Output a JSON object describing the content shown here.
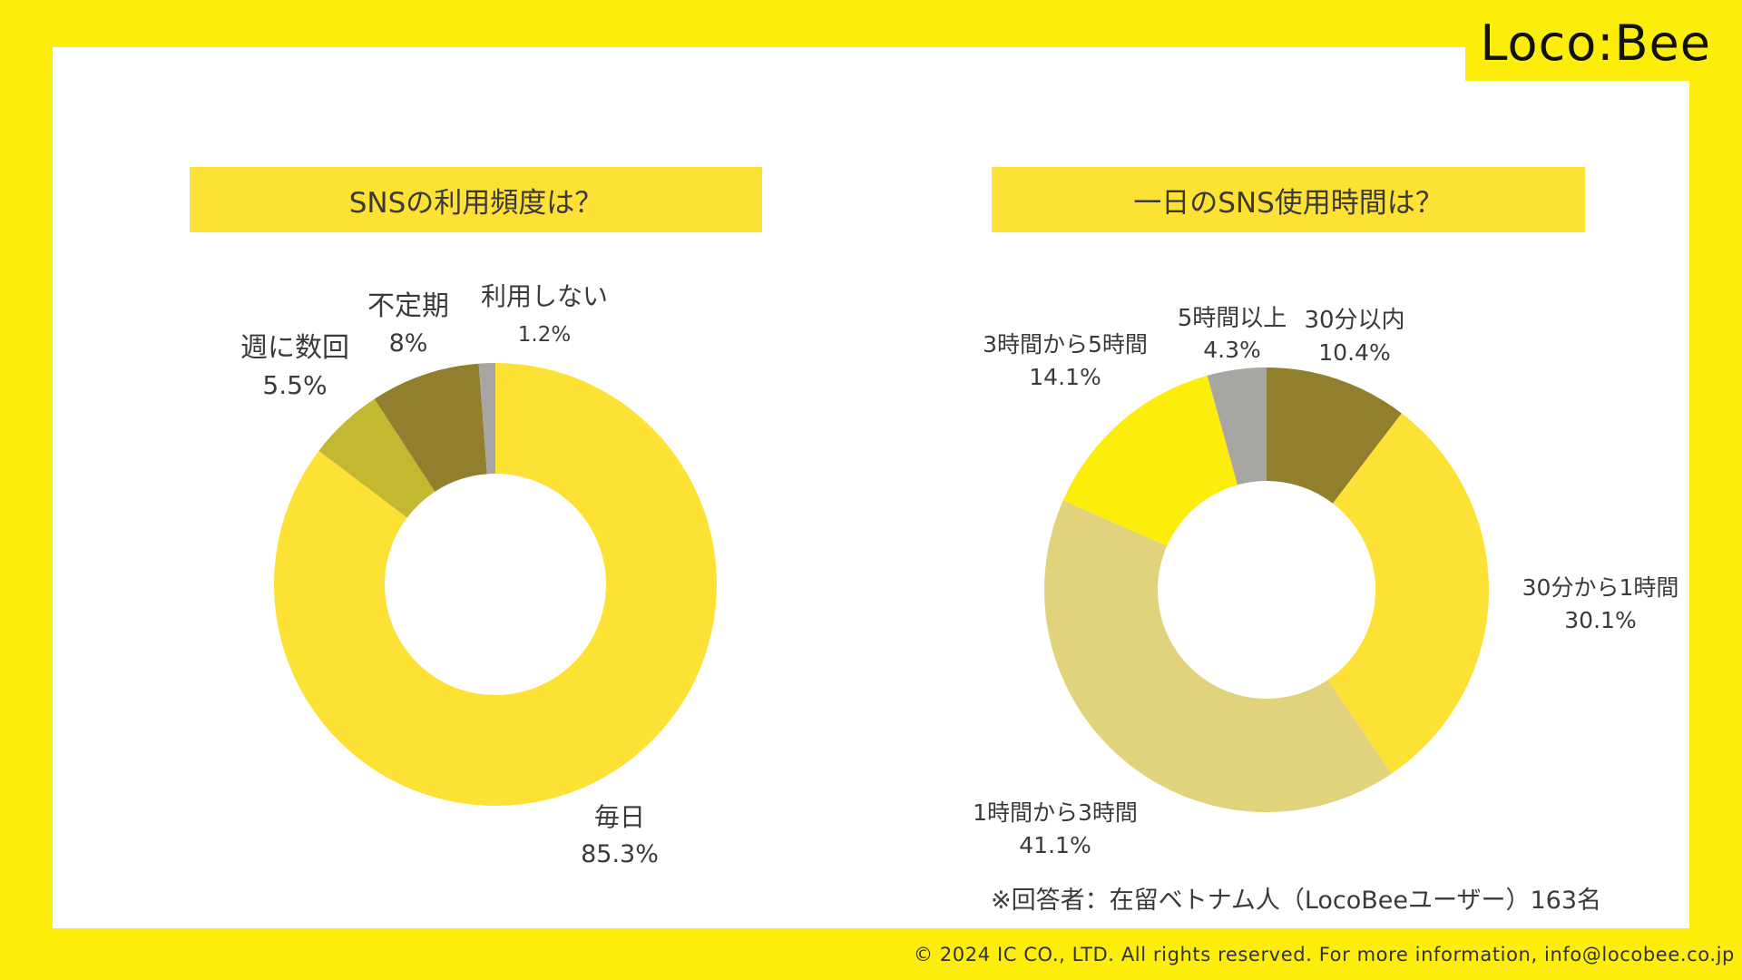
{
  "brand": {
    "logo_text": "Loco:Bee"
  },
  "footer": {
    "copyright": "© 2024 IC CO., LTD. All rights reserved. For more information, info@locobee.co.jp"
  },
  "note": "※回答者：在留ベトナム人（LocoBeeユーザー）163名",
  "chart_data": [
    {
      "type": "pie",
      "title": "SNSの利用頻度は？",
      "donut": true,
      "slices": [
        {
          "label": "毎日",
          "value": 85.3,
          "display": "85.3%",
          "color": "#FDE235"
        },
        {
          "label": "週に数回",
          "value": 5.5,
          "display": "5.5%",
          "color": "#C3B930"
        },
        {
          "label": "不定期",
          "value": 8,
          "display": "8%",
          "color": "#917F2E"
        },
        {
          "label": "利用しない",
          "value": 1.2,
          "display": "1.2%",
          "color": "#A7A6A2"
        }
      ]
    },
    {
      "type": "pie",
      "title": "一日のSNS使用時間は？",
      "donut": true,
      "slices": [
        {
          "label": "30分以内",
          "value": 10.4,
          "display": "10.4%",
          "color": "#917F2E"
        },
        {
          "label": "30分から1時間",
          "value": 30.1,
          "display": "30.1%",
          "color": "#FDE235"
        },
        {
          "label": "1時間から3時間",
          "value": 41.1,
          "display": "41.1%",
          "color": "#E0D37C"
        },
        {
          "label": "3時間から5時間",
          "value": 14.1,
          "display": "14.1%",
          "color": "#FCEE0A"
        },
        {
          "label": "5時間以上",
          "value": 4.3,
          "display": "4.3%",
          "color": "#A7A6A2"
        }
      ]
    }
  ]
}
